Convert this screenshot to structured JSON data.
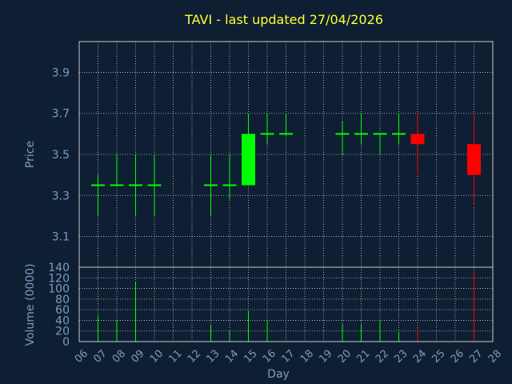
{
  "chart_data": [
    {
      "type": "candlestick",
      "title": "TAVI - last updated 27/04/2026",
      "ylabel": "Price",
      "ylim": [
        2.95,
        4.05
      ],
      "yticks": [
        3.1,
        3.3,
        3.5,
        3.7,
        3.9
      ],
      "xlim": [
        6,
        28
      ],
      "colors": {
        "up": "#00ff00",
        "down": "#ff0000",
        "neutral": "#00ff00"
      },
      "candles": [
        {
          "day": 7,
          "open": 3.35,
          "high": 3.4,
          "low": 3.2,
          "close": 3.35
        },
        {
          "day": 8,
          "open": 3.35,
          "high": 3.5,
          "low": 3.35,
          "close": 3.35
        },
        {
          "day": 9,
          "open": 3.35,
          "high": 3.5,
          "low": 3.2,
          "close": 3.35
        },
        {
          "day": 10,
          "open": 3.35,
          "high": 3.5,
          "low": 3.2,
          "close": 3.35
        },
        {
          "day": 13,
          "open": 3.35,
          "high": 3.5,
          "low": 3.2,
          "close": 3.35
        },
        {
          "day": 14,
          "open": 3.35,
          "high": 3.5,
          "low": 3.28,
          "close": 3.35
        },
        {
          "day": 15,
          "open": 3.35,
          "high": 3.7,
          "low": 3.35,
          "close": 3.6
        },
        {
          "day": 16,
          "open": 3.6,
          "high": 3.7,
          "low": 3.55,
          "close": 3.6
        },
        {
          "day": 17,
          "open": 3.6,
          "high": 3.7,
          "low": 3.6,
          "close": 3.6
        },
        {
          "day": 20,
          "open": 3.6,
          "high": 3.66,
          "low": 3.5,
          "close": 3.6
        },
        {
          "day": 21,
          "open": 3.6,
          "high": 3.7,
          "low": 3.55,
          "close": 3.6
        },
        {
          "day": 22,
          "open": 3.6,
          "high": 3.6,
          "low": 3.5,
          "close": 3.6
        },
        {
          "day": 23,
          "open": 3.6,
          "high": 3.7,
          "low": 3.55,
          "close": 3.6
        },
        {
          "day": 24,
          "open": 3.6,
          "high": 3.7,
          "low": 3.4,
          "close": 3.55
        },
        {
          "day": 27,
          "open": 3.55,
          "high": 3.7,
          "low": 3.25,
          "close": 3.4
        }
      ]
    },
    {
      "type": "bar",
      "ylabel": "Volume (0000)",
      "xlabel": "Day",
      "ylim": [
        0,
        140
      ],
      "yticks": [
        0,
        20,
        40,
        60,
        80,
        100,
        120,
        140
      ],
      "xlim": [
        6,
        28
      ],
      "xticks": [
        "06",
        "07",
        "08",
        "09",
        "10",
        "11",
        "12",
        "13",
        "14",
        "15",
        "16",
        "17",
        "18",
        "19",
        "20",
        "21",
        "22",
        "23",
        "24",
        "25",
        "26",
        "27",
        "28"
      ],
      "x": [
        7,
        8,
        9,
        10,
        13,
        14,
        15,
        16,
        17,
        20,
        21,
        22,
        23,
        24,
        27
      ],
      "values": [
        50,
        40,
        112,
        0,
        30,
        20,
        57,
        40,
        0,
        33,
        33,
        40,
        18,
        25,
        132
      ],
      "colors": [
        "#00ff00",
        "#00ff00",
        "#00ff00",
        "#00ff00",
        "#00ff00",
        "#00ff00",
        "#00ff00",
        "#00ff00",
        "#00ff00",
        "#00ff00",
        "#00ff00",
        "#00ff00",
        "#00ff00",
        "#ff0000",
        "#ff0000"
      ]
    }
  ]
}
